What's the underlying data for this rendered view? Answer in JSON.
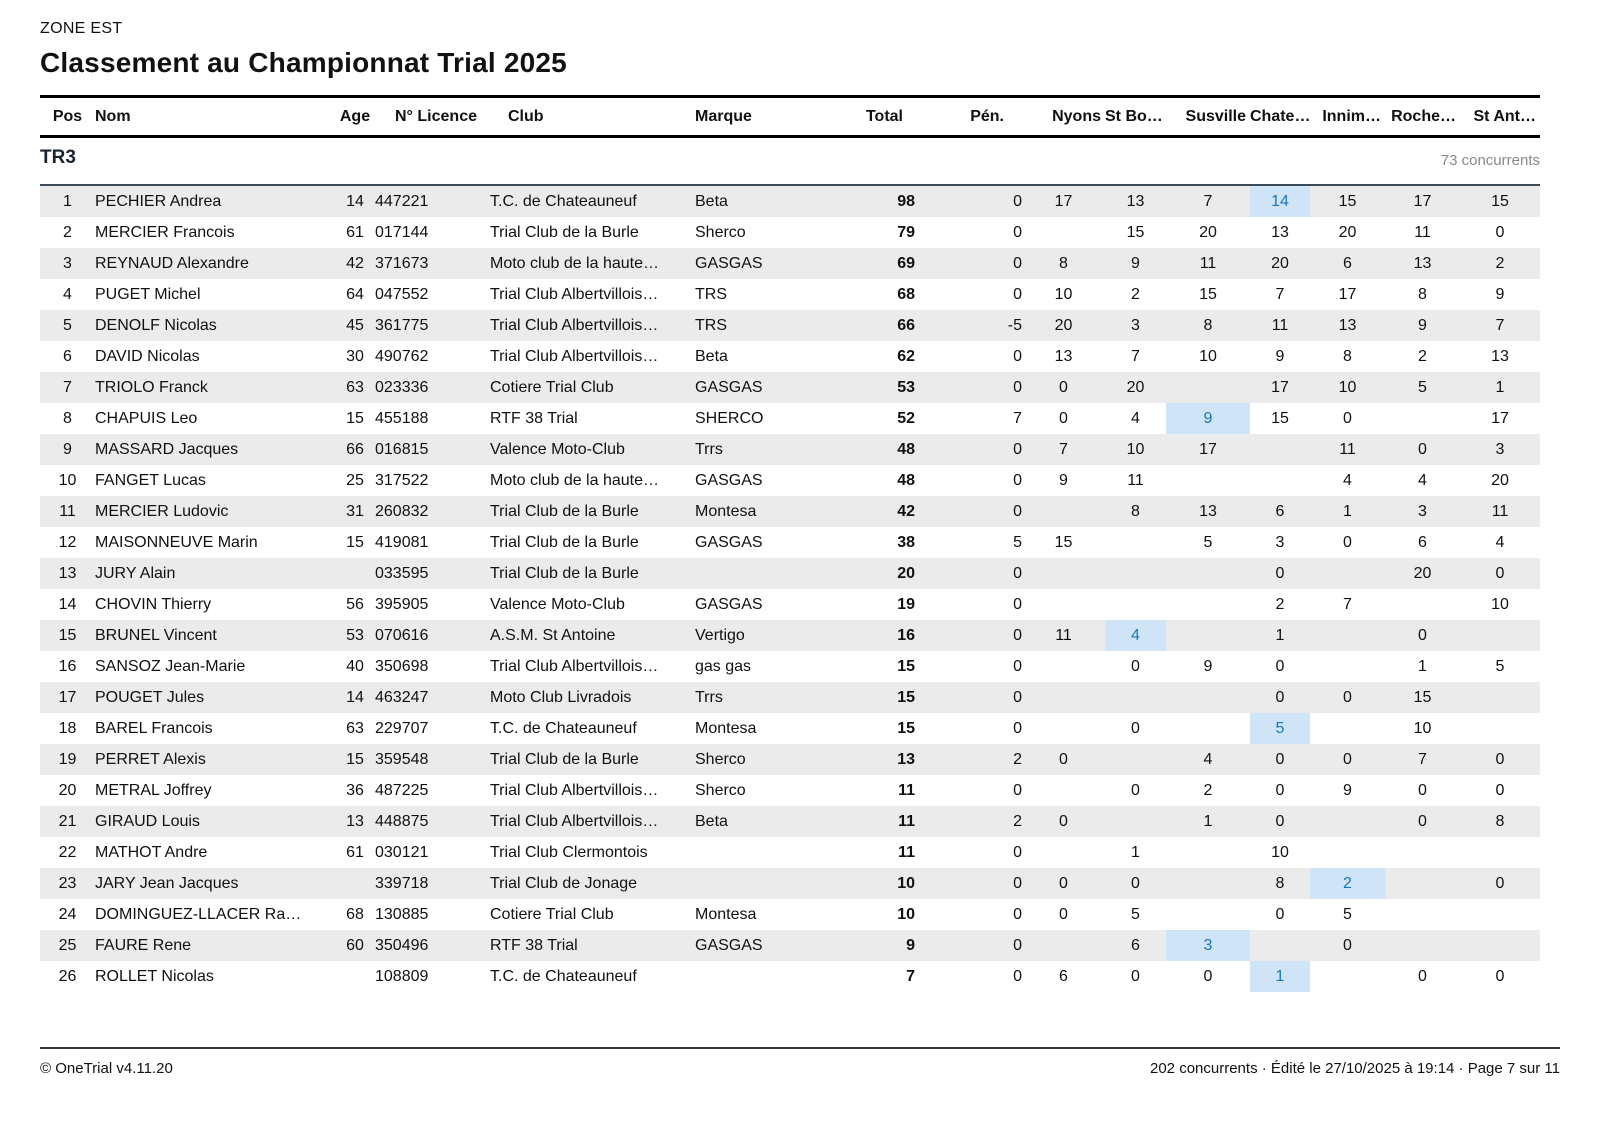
{
  "page": {
    "zone": "ZONE EST",
    "title": "Classement au Championnat Trial 2025"
  },
  "columns": {
    "pos": "Pos",
    "nom": "Nom",
    "age": "Age",
    "licence": "N° Licence",
    "club": "Club",
    "marque": "Marque",
    "total": "Total",
    "pen": "Pén.",
    "events": [
      "Nyons",
      "St Bo…",
      "Susville",
      "Chate…",
      "Innim…",
      "Roche…",
      "St Ant…"
    ]
  },
  "section": {
    "label": "TR3",
    "count": "73 concurrents"
  },
  "rows": [
    {
      "pos": "1",
      "nom": "PECHIER Andrea",
      "age": "14",
      "licence": "447221",
      "club": "T.C. de Chateauneuf",
      "marque": "Beta",
      "total": "98",
      "pen": "0",
      "events": [
        "17",
        "13",
        "7",
        "14",
        "15",
        "17",
        "15"
      ],
      "hl": 3
    },
    {
      "pos": "2",
      "nom": "MERCIER Francois",
      "age": "61",
      "licence": "017144",
      "club": "Trial Club de la Burle",
      "marque": "Sherco",
      "total": "79",
      "pen": "0",
      "events": [
        "",
        "15",
        "20",
        "13",
        "20",
        "11",
        "0"
      ],
      "hl": -1
    },
    {
      "pos": "3",
      "nom": "REYNAUD Alexandre",
      "age": "42",
      "licence": "371673",
      "club": "Moto club de la haute…",
      "marque": "GASGAS",
      "total": "69",
      "pen": "0",
      "events": [
        "8",
        "9",
        "11",
        "20",
        "6",
        "13",
        "2"
      ],
      "hl": -1
    },
    {
      "pos": "4",
      "nom": "PUGET Michel",
      "age": "64",
      "licence": "047552",
      "club": "Trial Club Albertvillois…",
      "marque": "TRS",
      "total": "68",
      "pen": "0",
      "events": [
        "10",
        "2",
        "15",
        "7",
        "17",
        "8",
        "9"
      ],
      "hl": -1
    },
    {
      "pos": "5",
      "nom": "DENOLF Nicolas",
      "age": "45",
      "licence": "361775",
      "club": "Trial Club Albertvillois…",
      "marque": "TRS",
      "total": "66",
      "pen": "-5",
      "events": [
        "20",
        "3",
        "8",
        "11",
        "13",
        "9",
        "7"
      ],
      "hl": -1
    },
    {
      "pos": "6",
      "nom": "DAVID Nicolas",
      "age": "30",
      "licence": "490762",
      "club": "Trial Club Albertvillois…",
      "marque": "Beta",
      "total": "62",
      "pen": "0",
      "events": [
        "13",
        "7",
        "10",
        "9",
        "8",
        "2",
        "13"
      ],
      "hl": -1
    },
    {
      "pos": "7",
      "nom": "TRIOLO Franck",
      "age": "63",
      "licence": "023336",
      "club": "Cotiere Trial Club",
      "marque": "GASGAS",
      "total": "53",
      "pen": "0",
      "events": [
        "0",
        "20",
        "",
        "17",
        "10",
        "5",
        "1"
      ],
      "hl": -1
    },
    {
      "pos": "8",
      "nom": "CHAPUIS Leo",
      "age": "15",
      "licence": "455188",
      "club": "RTF 38 Trial",
      "marque": "SHERCO",
      "total": "52",
      "pen": "7",
      "events": [
        "0",
        "4",
        "9",
        "15",
        "0",
        "",
        "17"
      ],
      "hl": 2
    },
    {
      "pos": "9",
      "nom": "MASSARD Jacques",
      "age": "66",
      "licence": "016815",
      "club": "Valence Moto-Club",
      "marque": "Trrs",
      "total": "48",
      "pen": "0",
      "events": [
        "7",
        "10",
        "17",
        "",
        "11",
        "0",
        "3"
      ],
      "hl": -1
    },
    {
      "pos": "10",
      "nom": "FANGET Lucas",
      "age": "25",
      "licence": "317522",
      "club": "Moto club de la haute…",
      "marque": "GASGAS",
      "total": "48",
      "pen": "0",
      "events": [
        "9",
        "11",
        "",
        "",
        "4",
        "4",
        "20"
      ],
      "hl": -1
    },
    {
      "pos": "11",
      "nom": "MERCIER Ludovic",
      "age": "31",
      "licence": "260832",
      "club": "Trial Club de la Burle",
      "marque": "Montesa",
      "total": "42",
      "pen": "0",
      "events": [
        "",
        "8",
        "13",
        "6",
        "1",
        "3",
        "11"
      ],
      "hl": -1
    },
    {
      "pos": "12",
      "nom": "MAISONNEUVE Marin",
      "age": "15",
      "licence": "419081",
      "club": "Trial Club de la Burle",
      "marque": "GASGAS",
      "total": "38",
      "pen": "5",
      "events": [
        "15",
        "",
        "5",
        "3",
        "0",
        "6",
        "4"
      ],
      "hl": -1
    },
    {
      "pos": "13",
      "nom": "JURY Alain",
      "age": "",
      "licence": "033595",
      "club": "Trial Club de la Burle",
      "marque": "",
      "total": "20",
      "pen": "0",
      "events": [
        "",
        "",
        "",
        "0",
        "",
        "20",
        "0"
      ],
      "hl": -1
    },
    {
      "pos": "14",
      "nom": "CHOVIN Thierry",
      "age": "56",
      "licence": "395905",
      "club": "Valence Moto-Club",
      "marque": "GASGAS",
      "total": "19",
      "pen": "0",
      "events": [
        "",
        "",
        "",
        "2",
        "7",
        "",
        "10"
      ],
      "hl": -1
    },
    {
      "pos": "15",
      "nom": "BRUNEL Vincent",
      "age": "53",
      "licence": "070616",
      "club": "A.S.M. St Antoine",
      "marque": "Vertigo",
      "total": "16",
      "pen": "0",
      "events": [
        "11",
        "4",
        "",
        "1",
        "",
        "0",
        ""
      ],
      "hl": 1
    },
    {
      "pos": "16",
      "nom": "SANSOZ Jean-Marie",
      "age": "40",
      "licence": "350698",
      "club": "Trial Club Albertvillois…",
      "marque": "gas gas",
      "total": "15",
      "pen": "0",
      "events": [
        "",
        "0",
        "9",
        "0",
        "",
        "1",
        "5"
      ],
      "hl": -1
    },
    {
      "pos": "17",
      "nom": "POUGET Jules",
      "age": "14",
      "licence": "463247",
      "club": "Moto Club Livradois",
      "marque": "Trrs",
      "total": "15",
      "pen": "0",
      "events": [
        "",
        "",
        "",
        "0",
        "0",
        "15",
        ""
      ],
      "hl": -1
    },
    {
      "pos": "18",
      "nom": "BAREL Francois",
      "age": "63",
      "licence": "229707",
      "club": "T.C. de Chateauneuf",
      "marque": "Montesa",
      "total": "15",
      "pen": "0",
      "events": [
        "",
        "0",
        "",
        "5",
        "",
        "10",
        ""
      ],
      "hl": 3
    },
    {
      "pos": "19",
      "nom": "PERRET Alexis",
      "age": "15",
      "licence": "359548",
      "club": "Trial Club de la Burle",
      "marque": "Sherco",
      "total": "13",
      "pen": "2",
      "events": [
        "0",
        "",
        "4",
        "0",
        "0",
        "7",
        "0"
      ],
      "hl": -1
    },
    {
      "pos": "20",
      "nom": "METRAL Joffrey",
      "age": "36",
      "licence": "487225",
      "club": "Trial Club Albertvillois…",
      "marque": "Sherco",
      "total": "11",
      "pen": "0",
      "events": [
        "",
        "0",
        "2",
        "0",
        "9",
        "0",
        "0"
      ],
      "hl": -1
    },
    {
      "pos": "21",
      "nom": "GIRAUD Louis",
      "age": "13",
      "licence": "448875",
      "club": "Trial Club Albertvillois…",
      "marque": "Beta",
      "total": "11",
      "pen": "2",
      "events": [
        "0",
        "",
        "1",
        "0",
        "",
        "0",
        "8"
      ],
      "hl": -1
    },
    {
      "pos": "22",
      "nom": "MATHOT Andre",
      "age": "61",
      "licence": "030121",
      "club": "Trial Club Clermontois",
      "marque": "",
      "total": "11",
      "pen": "0",
      "events": [
        "",
        "1",
        "",
        "10",
        "",
        "",
        ""
      ],
      "hl": -1
    },
    {
      "pos": "23",
      "nom": "JARY Jean Jacques",
      "age": "",
      "licence": "339718",
      "club": "Trial Club de Jonage",
      "marque": "",
      "total": "10",
      "pen": "0",
      "events": [
        "0",
        "0",
        "",
        "8",
        "2",
        "",
        "0"
      ],
      "hl": 4
    },
    {
      "pos": "24",
      "nom": "DOMINGUEZ-LLACER Ra…",
      "age": "68",
      "licence": "130885",
      "club": "Cotiere Trial Club",
      "marque": "Montesa",
      "total": "10",
      "pen": "0",
      "events": [
        "0",
        "5",
        "",
        "0",
        "5",
        "",
        ""
      ],
      "hl": -1
    },
    {
      "pos": "25",
      "nom": "FAURE Rene",
      "age": "60",
      "licence": "350496",
      "club": "RTF 38 Trial",
      "marque": "GASGAS",
      "total": "9",
      "pen": "0",
      "events": [
        "",
        "6",
        "3",
        "",
        "0",
        "",
        ""
      ],
      "hl": 2
    },
    {
      "pos": "26",
      "nom": "ROLLET Nicolas",
      "age": "",
      "licence": "108809",
      "club": "T.C. de Chateauneuf",
      "marque": "",
      "total": "7",
      "pen": "0",
      "events": [
        "6",
        "0",
        "0",
        "1",
        "",
        "0",
        "0"
      ],
      "hl": 3
    }
  ],
  "footer": {
    "left": "© OneTrial v4.11.20",
    "right": "202 concurrents · Édité le 27/10/2025 à 19:14 · Page 7 sur 11"
  },
  "colors": {
    "stripe": "#ebebeb",
    "highlight_bg": "#cfe5f7",
    "highlight_text": "#1878ba"
  }
}
